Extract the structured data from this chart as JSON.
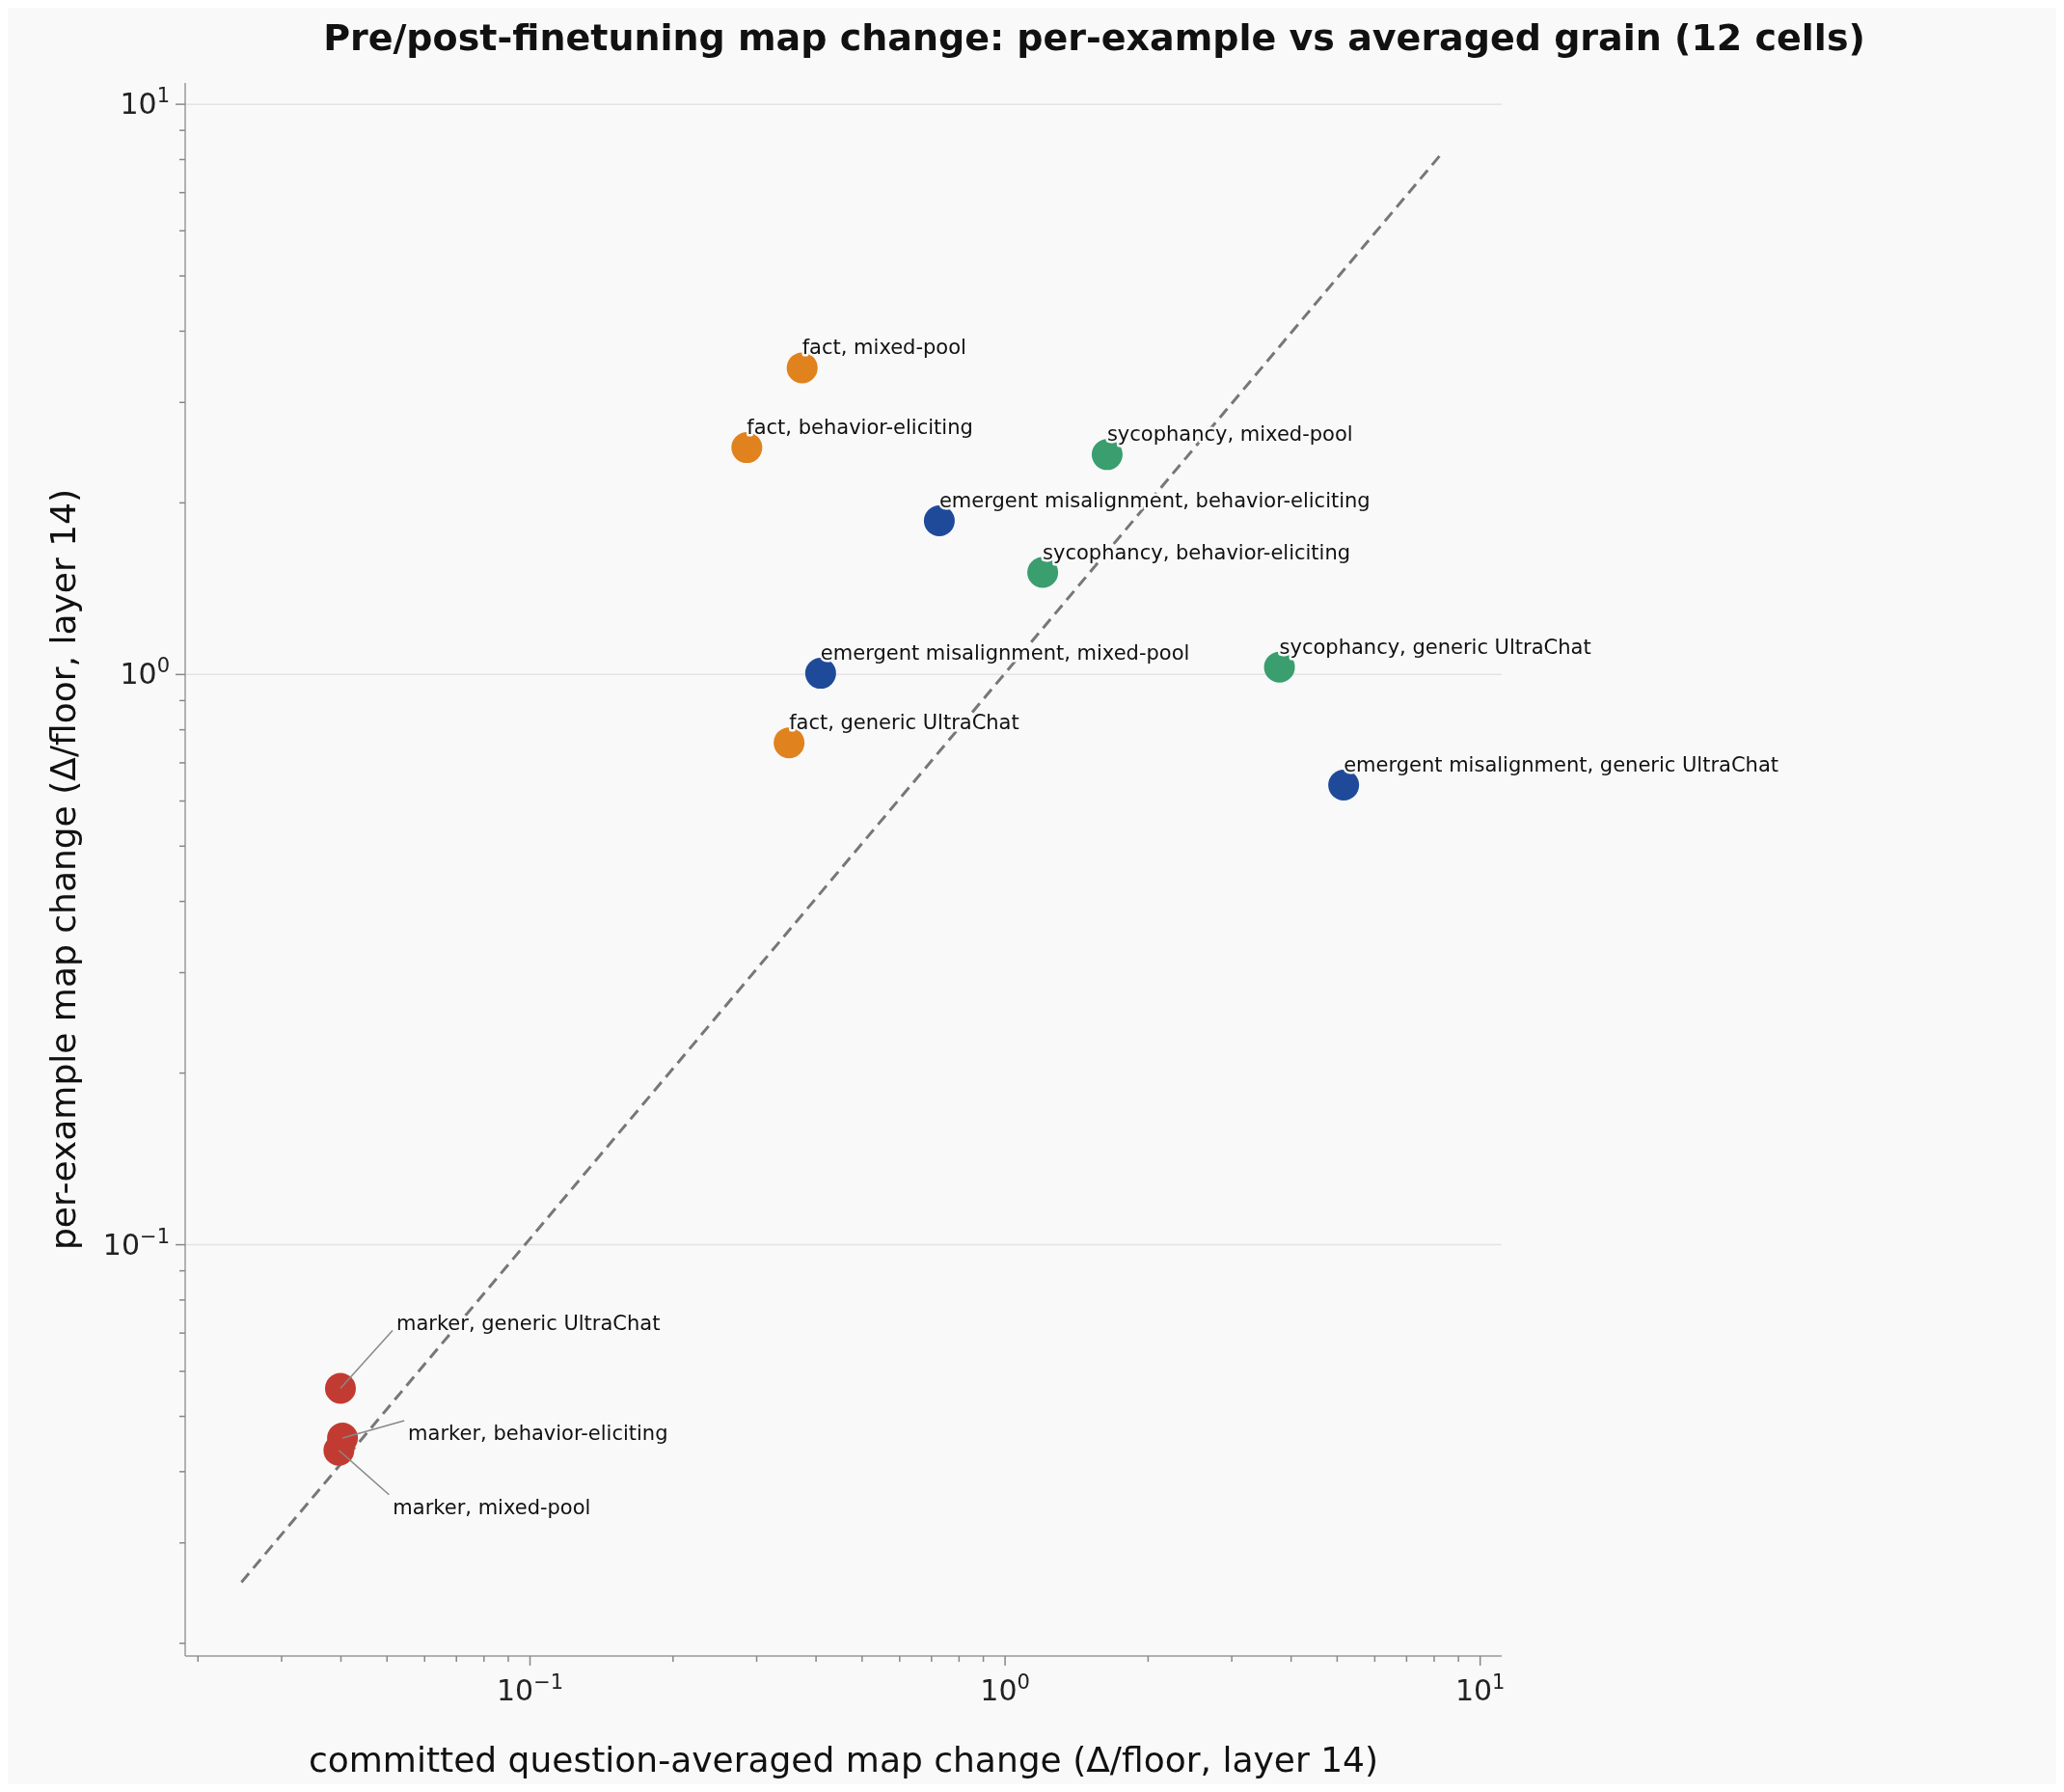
{
  "chart_data": {
    "type": "scatter",
    "title": "Pre/post-finetuning map change: per-example vs averaged grain (12 cells)",
    "xlabel": "committed question-averaged map change (Δ/floor, layer 14)",
    "ylabel": "per-example map change (Δ/floor, layer 14)",
    "log": "xy",
    "grid": "y",
    "marker": "circle",
    "xlim": [
      0.0188,
      11.1
    ],
    "ylim": [
      0.019,
      10.9
    ],
    "xticks": [
      {
        "value": 0.02,
        "label": null
      },
      {
        "value": 0.03,
        "label": null
      },
      {
        "value": 0.04,
        "label": null
      },
      {
        "value": 0.05,
        "label": null
      },
      {
        "value": 0.06,
        "label": null
      },
      {
        "value": 0.07,
        "label": null
      },
      {
        "value": 0.08,
        "label": null
      },
      {
        "value": 0.09,
        "label": null
      },
      {
        "value": 0.1,
        "label": "10$^{−1}$"
      },
      {
        "value": 0.2,
        "label": null
      },
      {
        "value": 0.3,
        "label": null
      },
      {
        "value": 0.4,
        "label": null
      },
      {
        "value": 0.5,
        "label": null
      },
      {
        "value": 0.6,
        "label": null
      },
      {
        "value": 0.7,
        "label": null
      },
      {
        "value": 0.8,
        "label": null
      },
      {
        "value": 0.9,
        "label": null
      },
      {
        "value": 1,
        "label": "10$^{0}$"
      },
      {
        "value": 2,
        "label": null
      },
      {
        "value": 3,
        "label": null
      },
      {
        "value": 4,
        "label": null
      },
      {
        "value": 5,
        "label": null
      },
      {
        "value": 6,
        "label": null
      },
      {
        "value": 7,
        "label": null
      },
      {
        "value": 8,
        "label": null
      },
      {
        "value": 9,
        "label": null
      },
      {
        "value": 10,
        "label": "10$^{1}$"
      }
    ],
    "yticks": [
      {
        "value": 0.02,
        "label": null
      },
      {
        "value": 0.03,
        "label": null
      },
      {
        "value": 0.04,
        "label": null
      },
      {
        "value": 0.05,
        "label": null
      },
      {
        "value": 0.06,
        "label": null
      },
      {
        "value": 0.07,
        "label": null
      },
      {
        "value": 0.08,
        "label": null
      },
      {
        "value": 0.09,
        "label": null
      },
      {
        "value": 0.1,
        "label": "10$^{−1}$"
      },
      {
        "value": 0.2,
        "label": null
      },
      {
        "value": 0.3,
        "label": null
      },
      {
        "value": 0.4,
        "label": null
      },
      {
        "value": 0.5,
        "label": null
      },
      {
        "value": 0.6,
        "label": null
      },
      {
        "value": 0.7,
        "label": null
      },
      {
        "value": 0.8,
        "label": null
      },
      {
        "value": 0.9,
        "label": null
      },
      {
        "value": 1,
        "label": "10$^{0}$"
      },
      {
        "value": 2,
        "label": null
      },
      {
        "value": 3,
        "label": null
      },
      {
        "value": 4,
        "label": null
      },
      {
        "value": 5,
        "label": null
      },
      {
        "value": 6,
        "label": null
      },
      {
        "value": 7,
        "label": null
      },
      {
        "value": 8,
        "label": null
      },
      {
        "value": 9,
        "label": null
      },
      {
        "value": 10,
        "label": "10$^{1}$"
      }
    ],
    "series": [
      {
        "type": "scatter",
        "x": [
          0.374,
          0.286,
          0.351,
          1.64,
          1.2,
          3.78,
          0.727,
          0.409,
          5.16,
          0.0399,
          0.0403,
          0.0396
        ],
        "values": [
          3.45,
          2.5,
          0.759,
          2.43,
          1.51,
          1.03,
          1.86,
          1.005,
          0.64,
          0.056,
          0.0458,
          0.0436
        ],
        "colors": [
          "#e0821e",
          "#e0821e",
          "#e0821e",
          "#3a9e6e",
          "#3a9e6e",
          "#3a9e6e",
          "#1f4a9a",
          "#1f4a9a",
          "#1f4a9a",
          "#c23b32",
          "#c23b32",
          "#c23b32"
        ]
      },
      {
        "type": "line",
        "x": [
          0.0247,
          8.3
        ],
        "values": [
          0.0256,
          8.2
        ],
        "color": "#777777",
        "line_style": "dashed",
        "marker": "none"
      }
    ],
    "annotations": [
      {
        "text": "fact, mixed-pool",
        "x": 0.374,
        "y": 3.45
      },
      {
        "text": "fact, behavior-eliciting",
        "x": 0.286,
        "y": 2.5
      },
      {
        "text": "fact, generic UltraChat",
        "x": 0.351,
        "y": 0.759
      },
      {
        "text": "sycophancy, mixed-pool",
        "x": 1.64,
        "y": 2.43
      },
      {
        "text": "sycophancy, behavior-eliciting",
        "x": 1.2,
        "y": 1.51
      },
      {
        "text": "sycophancy, generic UltraChat",
        "x": 3.78,
        "y": 1.03
      },
      {
        "text": "emergent misalignment, behavior-eliciting",
        "x": 0.727,
        "y": 1.86
      },
      {
        "text": "emergent misalignment, mixed-pool",
        "x": 0.409,
        "y": 1.005
      },
      {
        "text": "emergent misalignment, generic UltraChat",
        "x": 5.16,
        "y": 0.64
      },
      {
        "text": "marker, generic UltraChat",
        "x": 0.0399,
        "y": 0.056
      },
      {
        "text": "marker, behavior-eliciting",
        "x": 0.0403,
        "y": 0.0458
      },
      {
        "text": "marker, mixed-pool",
        "x": 0.0396,
        "y": 0.0436
      }
    ]
  }
}
